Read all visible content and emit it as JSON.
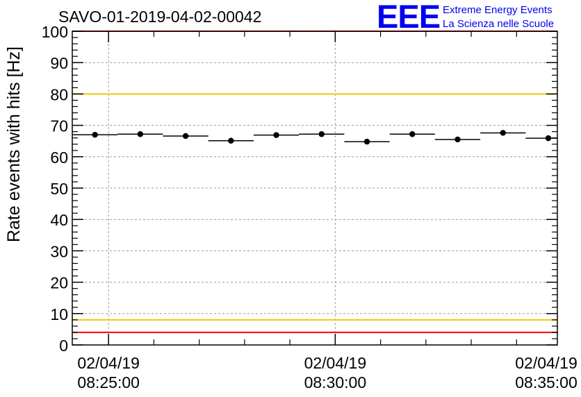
{
  "chart_data": {
    "type": "scatter",
    "title": "SAVO-01-2019-04-02-00042",
    "ylabel": "Rate events with hits [Hz]",
    "xlabel": "",
    "ylim": [
      0,
      100
    ],
    "yticks": [
      0,
      10,
      20,
      30,
      40,
      50,
      60,
      70,
      80,
      90,
      100
    ],
    "xlim_minutes": [
      -0.8,
      9.9
    ],
    "xticks": [
      {
        "minute": 0,
        "date": "02/04/19",
        "time": "08:25:00"
      },
      {
        "minute": 5,
        "date": "02/04/19",
        "time": "08:30:00"
      },
      {
        "minute": 10,
        "date": "02/04/19",
        "time": "08:35:00"
      }
    ],
    "grid": true,
    "series": [
      {
        "name": "rate",
        "bin_width_minutes": 1.0,
        "x_minutes": [
          -0.3,
          0.7,
          1.7,
          2.7,
          3.7,
          4.7,
          5.7,
          6.7,
          7.7,
          8.7,
          9.7
        ],
        "values": [
          67.0,
          67.2,
          66.6,
          65.1,
          66.9,
          67.2,
          64.8,
          67.2,
          65.5,
          67.6,
          65.9
        ],
        "errors": [
          0.6,
          0.6,
          0.6,
          0.6,
          0.6,
          0.6,
          0.6,
          0.6,
          0.6,
          0.6,
          0.6
        ]
      }
    ],
    "reference_lines": [
      {
        "name": "upper-limit-red",
        "value": 100,
        "color": "#ff0000"
      },
      {
        "name": "upper-warning-yellow",
        "value": 80,
        "color": "#f0c800"
      },
      {
        "name": "lower-warning-yellow",
        "value": 8,
        "color": "#f0c800"
      },
      {
        "name": "lower-limit-red",
        "value": 4,
        "color": "#ff0000"
      }
    ]
  },
  "logo": {
    "text": "EEE",
    "line1": "Extreme Energy Events",
    "line2": "La Scienza nelle Scuole",
    "color": "#0000ee"
  }
}
